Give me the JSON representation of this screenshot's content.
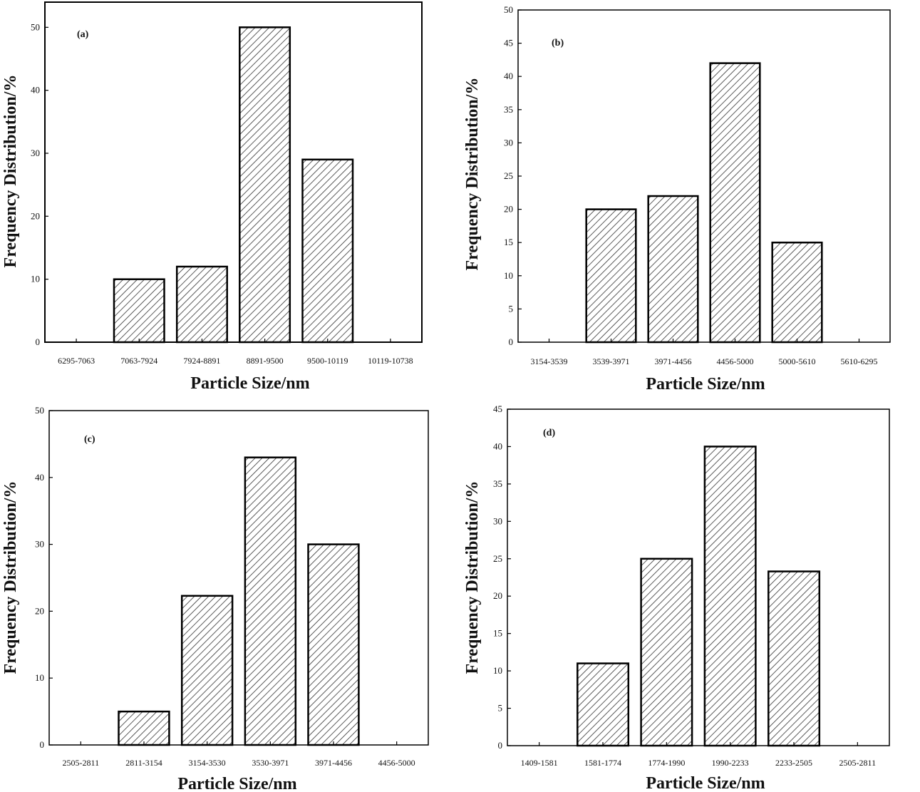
{
  "chart_data": [
    {
      "type": "bar",
      "panel_label": "(a)",
      "categories": [
        "6295-7063",
        "7063-7924",
        "7924-8891",
        "8891-9500",
        "9500-10119",
        "10119-10738"
      ],
      "values": [
        0,
        10,
        12,
        50,
        29,
        0
      ],
      "xlabel": "Particle Size/nm",
      "ylabel": "Frequency Distribution/%",
      "ylim": [
        0,
        54
      ],
      "yticks": [
        0,
        10,
        20,
        30,
        40,
        50
      ],
      "fill": "hatched diagonal",
      "colors": {
        "bar_edge": "#000000",
        "hatch": "#333333",
        "background": "#ffffff"
      }
    },
    {
      "type": "bar",
      "panel_label": "(b)",
      "categories": [
        "3154-3539",
        "3539-3971",
        "3971-4456",
        "4456-5000",
        "5000-5610",
        "5610-6295"
      ],
      "values": [
        0,
        20,
        22,
        42,
        15,
        0
      ],
      "xlabel": "Particle Size/nm",
      "ylabel": "Frequency Distribution/%",
      "ylim": [
        0,
        50
      ],
      "yticks": [
        0,
        5,
        10,
        15,
        20,
        25,
        30,
        35,
        40,
        45,
        50
      ],
      "fill": "hatched diagonal",
      "colors": {
        "bar_edge": "#000000",
        "hatch": "#333333",
        "background": "#ffffff"
      }
    },
    {
      "type": "bar",
      "panel_label": "(c)",
      "categories": [
        "2505-2811",
        "2811-3154",
        "3154-3530",
        "3530-3971",
        "3971-4456",
        "4456-5000"
      ],
      "values": [
        0,
        5,
        22.3,
        43,
        30,
        0
      ],
      "xlabel": "Particle Size/nm",
      "ylabel": "Frequency Distribution/%",
      "ylim": [
        0,
        50
      ],
      "yticks": [
        0,
        10,
        20,
        30,
        40,
        50
      ],
      "fill": "hatched diagonal",
      "colors": {
        "bar_edge": "#000000",
        "hatch": "#333333",
        "background": "#ffffff"
      }
    },
    {
      "type": "bar",
      "panel_label": "(d)",
      "categories": [
        "1409-1581",
        "1581-1774",
        "1774-1990",
        "1990-2233",
        "2233-2505",
        "2505-2811"
      ],
      "values": [
        0,
        11,
        25,
        40,
        23.3,
        0
      ],
      "xlabel": "Particle Size/nm",
      "ylabel": "Frequency Distribution/%",
      "ylim": [
        0,
        45
      ],
      "yticks": [
        0,
        5,
        10,
        15,
        20,
        25,
        30,
        35,
        40,
        45
      ],
      "fill": "hatched diagonal",
      "colors": {
        "bar_edge": "#000000",
        "hatch": "#333333",
        "background": "#ffffff"
      }
    }
  ]
}
